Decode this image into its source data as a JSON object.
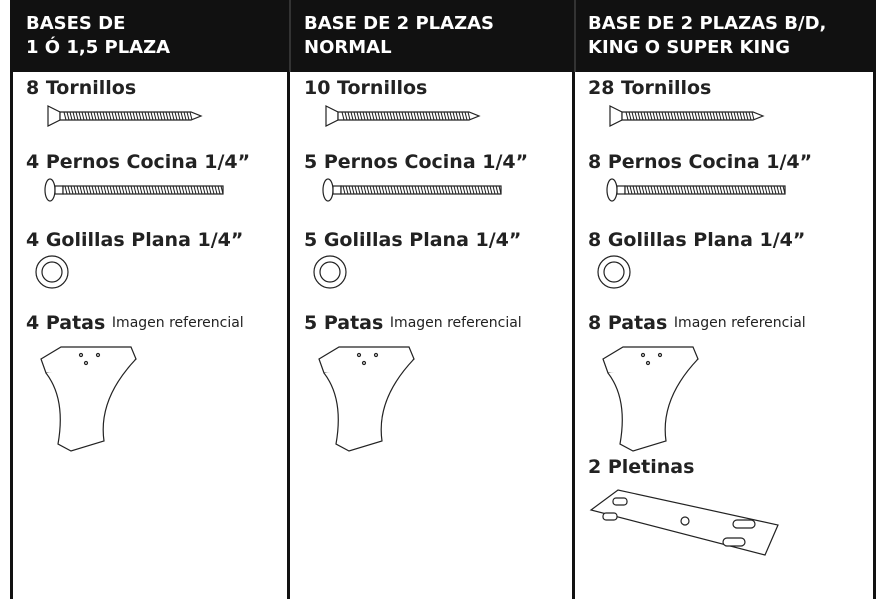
{
  "columns": [
    {
      "header": [
        "BASES DE",
        "1 Ó 1,5 PLAZA"
      ],
      "items": [
        {
          "label": "8 Tornillos"
        },
        {
          "label": "4 Pernos Cocina 1/4”"
        },
        {
          "label": "4 Golillas Plana 1/4”"
        },
        {
          "label": "4 Patas",
          "note": "Imagen referencial"
        }
      ]
    },
    {
      "header": [
        "BASE DE 2 PLAZAS",
        "NORMAL"
      ],
      "items": [
        {
          "label": "10 Tornillos"
        },
        {
          "label": "5 Pernos Cocina 1/4”"
        },
        {
          "label": "5 Golillas Plana 1/4”"
        },
        {
          "label": "5 Patas",
          "note": "Imagen referencial"
        }
      ]
    },
    {
      "header": [
        "BASE DE 2 PLAZAS B/D,",
        "KING O SUPER KING"
      ],
      "items": [
        {
          "label": "28 Tornillos"
        },
        {
          "label": "8 Pernos Cocina 1/4”"
        },
        {
          "label": "8 Golillas Plana 1/4”"
        },
        {
          "label": "8 Patas",
          "note": "Imagen referencial"
        },
        {
          "label": "2 Pletinas"
        }
      ]
    }
  ]
}
